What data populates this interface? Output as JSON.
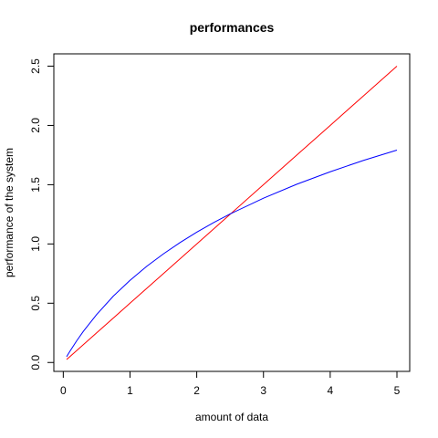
{
  "chart_data": {
    "type": "line",
    "title": "performances",
    "xlabel": "amount of data",
    "ylabel": "performance of the system",
    "xlim": [
      0.05,
      5
    ],
    "ylim": [
      0.025,
      2.5
    ],
    "x_ticks": [
      0,
      1,
      2,
      3,
      4,
      5
    ],
    "y_ticks": [
      0.0,
      0.5,
      1.0,
      1.5,
      2.0,
      2.5
    ],
    "x_tick_labels": [
      "0",
      "1",
      "2",
      "3",
      "4",
      "5"
    ],
    "y_tick_labels": [
      "0.0",
      "0.5",
      "1.0",
      "1.5",
      "2.0",
      "2.5"
    ],
    "grid": false,
    "series": [
      {
        "color": "#ff0000",
        "x": [
          0.05,
          0.5,
          1,
          1.5,
          2,
          2.5,
          3,
          3.5,
          4,
          4.5,
          5
        ],
        "y": [
          0.025,
          0.25,
          0.5,
          0.75,
          1.0,
          1.25,
          1.5,
          1.75,
          2.0,
          2.25,
          2.5
        ]
      },
      {
        "color": "#0000ff",
        "x": [
          0.05,
          0.1,
          0.2,
          0.3,
          0.5,
          0.75,
          1,
          1.25,
          1.5,
          1.75,
          2,
          2.25,
          2.5,
          3,
          3.5,
          4,
          4.5,
          5
        ],
        "y": [
          0.049,
          0.095,
          0.182,
          0.262,
          0.405,
          0.56,
          0.693,
          0.811,
          0.916,
          1.012,
          1.099,
          1.179,
          1.253,
          1.386,
          1.504,
          1.609,
          1.705,
          1.792
        ]
      }
    ]
  }
}
